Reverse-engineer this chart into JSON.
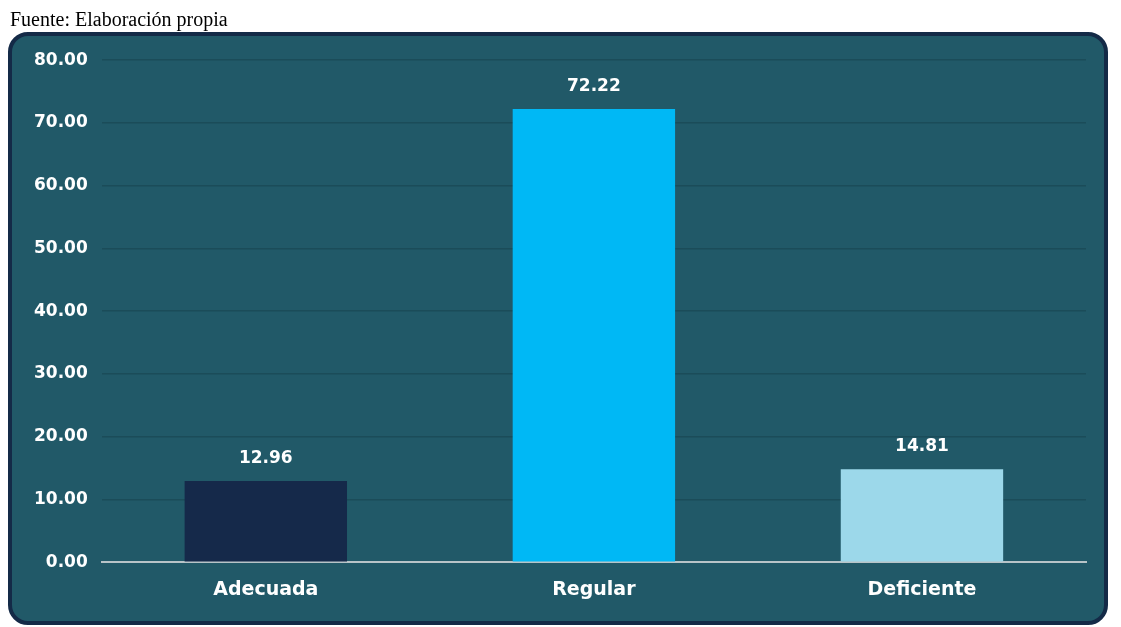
{
  "chart_data": {
    "type": "bar",
    "annotations": [
      "Fuente: Elaboración propia"
    ],
    "categories": [
      "Adecuada",
      "Regular",
      "Deficiente"
    ],
    "values": [
      12.96,
      72.22,
      14.81
    ],
    "colors": [
      "#15294a",
      "#00b8f5",
      "#9cd8ea"
    ],
    "ylim": [
      0,
      80
    ],
    "yticks": [
      {
        "value": 0,
        "label": "0.00"
      },
      {
        "value": 10,
        "label": "10.00"
      },
      {
        "value": 20,
        "label": "20.00"
      },
      {
        "value": 30,
        "label": "30.00"
      },
      {
        "value": 40,
        "label": "40.00"
      },
      {
        "value": 50,
        "label": "50.00"
      },
      {
        "value": 60,
        "label": "60.00"
      },
      {
        "value": 70,
        "label": "70.00"
      },
      {
        "value": 80,
        "label": "80.00"
      }
    ],
    "grid": "y",
    "data_labels": true,
    "legend": false
  }
}
